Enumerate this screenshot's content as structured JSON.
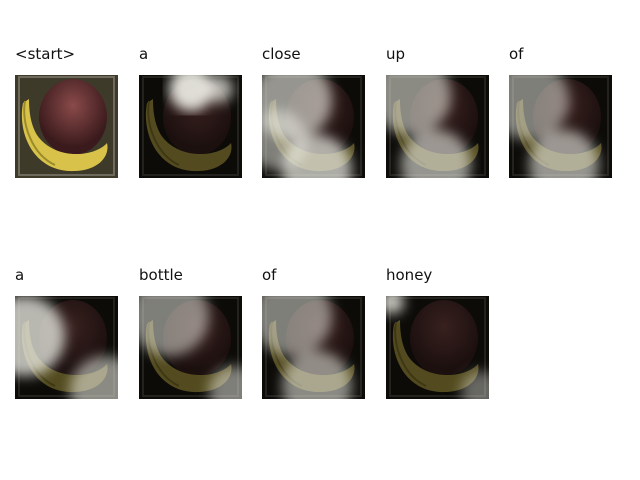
{
  "words": [
    "<start>",
    "a",
    "close",
    "up",
    "of",
    "a",
    "bottle",
    "of",
    "honey"
  ],
  "colors": {
    "background": "#ffffff",
    "text": "#111111",
    "attention_highlight": "#ffffff",
    "banana": "#d8c24a",
    "bag": "#5c2a2a",
    "frame": "#0c0b08"
  }
}
